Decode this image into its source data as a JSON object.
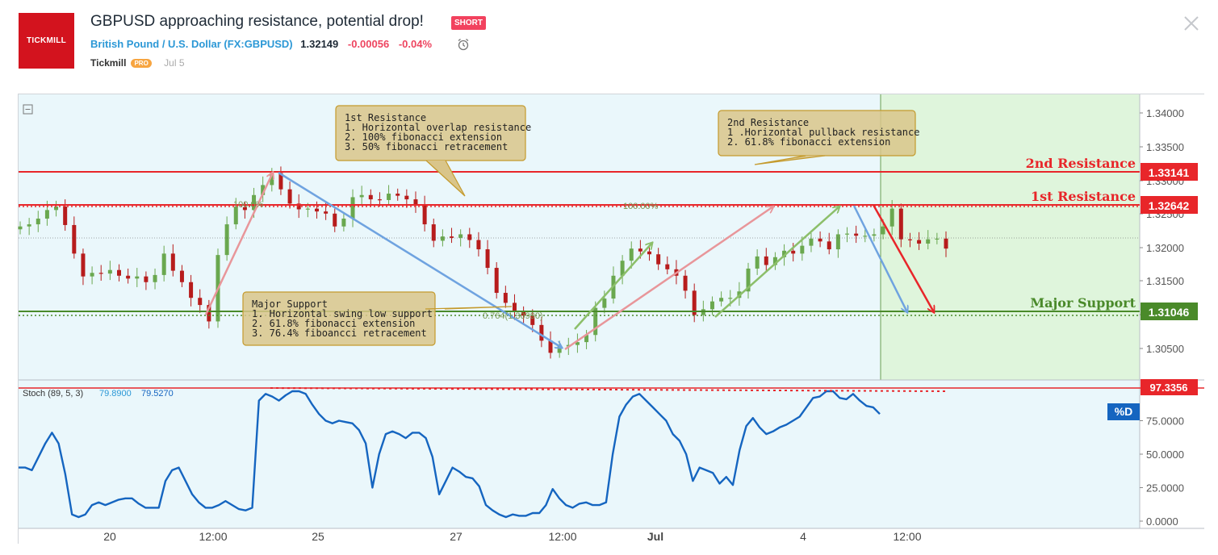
{
  "header": {
    "logo_text": "TICKMILL",
    "title": "GBPUSD approaching resistance, potential drop!",
    "badge": "SHORT",
    "symbol_name": "British Pound / U.S. Dollar",
    "symbol_code": "(FX:GBPUSD)",
    "price": "1.32149",
    "change": "-0.00056",
    "change_pct": "-0.04%",
    "author": "Tickmill",
    "author_badge": "PRO",
    "date": "Jul 5"
  },
  "icons": {
    "alarm": "alarm-clock-icon",
    "close": "close-icon",
    "collapse": "minus-square-icon"
  },
  "colors": {
    "resistance": "#e8262a",
    "support": "#4a8a2a",
    "stoch": "#1565c0",
    "projection_zone": "#dff5dc",
    "chart_bg": "#eaf7fb",
    "candle_up": "#6aa84f",
    "candle_down": "#b71c1c",
    "arrow_blue": "#6fa3e0",
    "arrow_pink": "#e8969a",
    "arrow_green": "#8cbf6a",
    "arrow_red": "#e8262a"
  },
  "chart_data": [
    {
      "type": "candlestick",
      "ylim": [
        1.3025,
        1.3425
      ],
      "y_ticks": [
        "1.34000",
        "1.33500",
        "1.33000",
        "1.32500",
        "1.32000",
        "1.31500",
        "1.31000",
        "1.30500"
      ],
      "x_ticks": [
        "20",
        "12:00",
        "25",
        "27",
        "12:00",
        "Jul",
        "4",
        "12:00"
      ],
      "ohlc_path_close": [
        1.324,
        1.3243,
        1.3251,
        1.3263,
        1.3268,
        1.3242,
        1.3202,
        1.317,
        1.3175,
        1.3174,
        1.3179,
        1.3171,
        1.3167,
        1.317,
        1.3162,
        1.3172,
        1.3202,
        1.3178,
        1.3162,
        1.314,
        1.313,
        1.3107,
        1.32,
        1.3243,
        1.3267,
        1.3263,
        1.3284,
        1.3298,
        1.3315,
        1.3292,
        1.3272,
        1.3264,
        1.3265,
        1.3261,
        1.3258,
        1.324,
        1.3251,
        1.3281,
        1.3284,
        1.3278,
        1.3277,
        1.3286,
        1.3283,
        1.3278,
        1.327,
        1.3243,
        1.322,
        1.3226,
        1.3224,
        1.3229,
        1.3221,
        1.3208,
        1.3182,
        1.3147,
        1.3133,
        1.3121,
        1.3115,
        1.3102,
        1.308,
        1.3063,
        1.3072,
        1.3074,
        1.3078,
        1.3088,
        1.3126,
        1.3139,
        1.3171,
        1.3192,
        1.3209,
        1.3205,
        1.3201,
        1.3187,
        1.318,
        1.3171,
        1.315,
        1.3116,
        1.3124,
        1.3135,
        1.314,
        1.314,
        1.3149,
        1.3181,
        1.3198,
        1.3186,
        1.3197,
        1.3206,
        1.3202,
        1.3213,
        1.3223,
        1.3219,
        1.3208,
        1.3229,
        1.323,
        1.3227,
        1.3227,
        1.3229,
        1.324,
        1.3265,
        1.3222,
        1.3221,
        1.3216,
        1.3222,
        1.3223,
        1.3209
      ],
      "levels": [
        {
          "label": "2nd Resistance",
          "value": "1.33141"
        },
        {
          "label": "1st Resistance",
          "value": "1.32642"
        },
        {
          "label": "Major Support",
          "value": "1.31046"
        }
      ],
      "fib_labels": [
        "100.0%",
        "100.00%",
        "0.764(1.30990)"
      ],
      "annotations": [
        {
          "title": "1st Resistance",
          "lines": [
            "1. Horizontal overlap resistance",
            "2. 100% fibonacci extension",
            "3. 50% fibonacci retracement"
          ]
        },
        {
          "title": "2nd Resistance",
          "lines": [
            "1 .Horizontal pullback resistance",
            "2. 61.8% fibonacci extension"
          ]
        },
        {
          "title": "Major Support",
          "lines": [
            "1. Horizontal swing low support",
            "2. 61.8% fibonacci extension",
            "3. 76.4% fiboancci retracement"
          ]
        }
      ]
    },
    {
      "type": "line",
      "title": "Stoch (89, 5, 3)",
      "legend_values": [
        "79.8900",
        "79.5270"
      ],
      "ylim": [
        0,
        100
      ],
      "y_ticks": [
        "75.0000",
        "50.0000",
        "25.0000",
        "0.0000"
      ],
      "level_label": "97.3356",
      "series_label": "%D",
      "values": [
        40,
        40,
        38,
        48,
        58,
        66,
        58,
        35,
        5,
        3,
        5,
        12,
        14,
        12,
        14,
        16,
        17,
        17,
        13,
        10,
        10,
        10,
        30,
        38,
        40,
        30,
        20,
        14,
        10,
        10,
        12,
        15,
        12,
        9,
        8,
        10,
        90,
        95,
        93,
        90,
        94,
        97,
        97,
        95,
        87,
        80,
        75,
        73,
        75,
        74,
        73,
        68,
        58,
        25,
        50,
        65,
        67,
        65,
        62,
        66,
        66,
        62,
        48,
        20,
        30,
        40,
        37,
        33,
        32,
        26,
        12,
        8,
        5,
        3,
        5,
        4,
        4,
        6,
        6,
        12,
        24,
        17,
        12,
        10,
        13,
        14,
        12,
        12,
        14,
        50,
        78,
        87,
        93,
        95,
        90,
        85,
        80,
        75,
        65,
        60,
        50,
        30,
        40,
        38,
        36,
        28,
        33,
        27,
        53,
        71,
        77,
        70,
        65,
        67,
        70,
        72,
        75,
        78,
        85,
        92,
        93,
        97,
        97,
        92,
        91,
        95,
        90,
        86,
        85,
        80
      ]
    }
  ]
}
